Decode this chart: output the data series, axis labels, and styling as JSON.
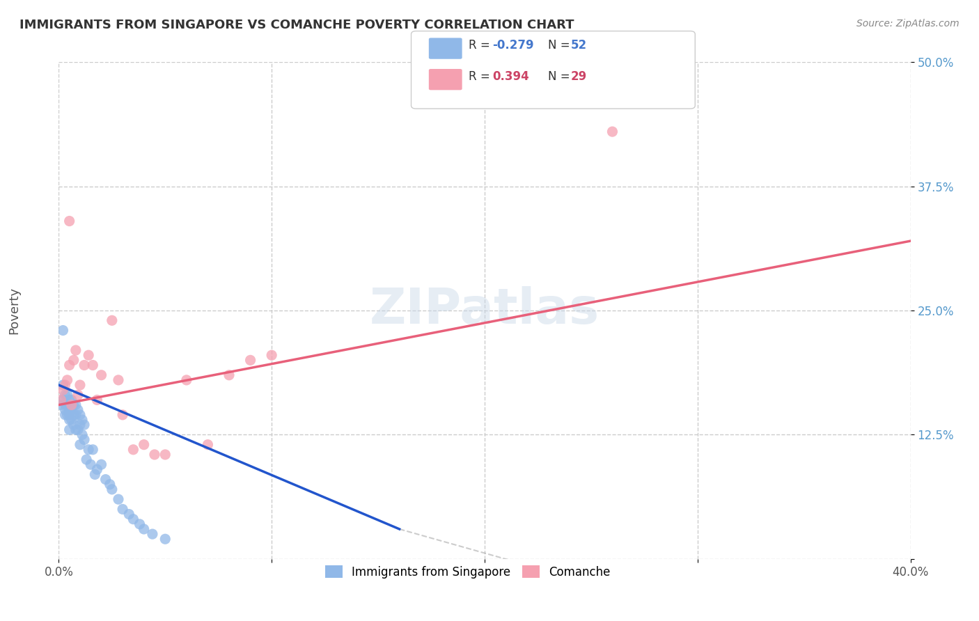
{
  "title": "IMMIGRANTS FROM SINGAPORE VS COMANCHE POVERTY CORRELATION CHART",
  "source": "Source: ZipAtlas.com",
  "xlabel": "",
  "ylabel": "Poverty",
  "xlim": [
    0.0,
    0.4
  ],
  "ylim": [
    0.0,
    0.5
  ],
  "xticks": [
    0.0,
    0.1,
    0.2,
    0.3,
    0.4
  ],
  "xtick_labels": [
    "0.0%",
    "",
    "",
    "",
    "40.0%"
  ],
  "yticks": [
    0.0,
    0.125,
    0.25,
    0.375,
    0.5
  ],
  "ytick_labels": [
    "",
    "12.5%",
    "25.0%",
    "37.5%",
    "50.0%"
  ],
  "legend_R1": "R = -0.279",
  "legend_N1": "N = 52",
  "legend_R2": "R =  0.394",
  "legend_N2": "N = 29",
  "blue_color": "#90b8e8",
  "pink_color": "#f5a0b0",
  "blue_line_color": "#2255cc",
  "pink_line_color": "#e8607a",
  "watermark": "ZIPatlas",
  "blue_scatter_x": [
    0.001,
    0.002,
    0.002,
    0.003,
    0.003,
    0.003,
    0.003,
    0.004,
    0.004,
    0.004,
    0.005,
    0.005,
    0.005,
    0.005,
    0.005,
    0.006,
    0.006,
    0.006,
    0.007,
    0.007,
    0.007,
    0.008,
    0.008,
    0.008,
    0.009,
    0.009,
    0.01,
    0.01,
    0.01,
    0.011,
    0.011,
    0.012,
    0.012,
    0.013,
    0.014,
    0.015,
    0.016,
    0.017,
    0.018,
    0.02,
    0.022,
    0.024,
    0.025,
    0.028,
    0.03,
    0.033,
    0.035,
    0.038,
    0.04,
    0.044,
    0.05,
    0.002
  ],
  "blue_scatter_y": [
    0.155,
    0.16,
    0.175,
    0.165,
    0.155,
    0.15,
    0.145,
    0.165,
    0.155,
    0.145,
    0.16,
    0.15,
    0.145,
    0.14,
    0.13,
    0.16,
    0.15,
    0.14,
    0.155,
    0.145,
    0.135,
    0.155,
    0.145,
    0.13,
    0.15,
    0.13,
    0.145,
    0.135,
    0.115,
    0.14,
    0.125,
    0.135,
    0.12,
    0.1,
    0.11,
    0.095,
    0.11,
    0.085,
    0.09,
    0.095,
    0.08,
    0.075,
    0.07,
    0.06,
    0.05,
    0.045,
    0.04,
    0.035,
    0.03,
    0.025,
    0.02,
    0.23
  ],
  "pink_scatter_x": [
    0.001,
    0.002,
    0.003,
    0.004,
    0.005,
    0.006,
    0.007,
    0.008,
    0.009,
    0.01,
    0.012,
    0.014,
    0.016,
    0.018,
    0.02,
    0.025,
    0.028,
    0.03,
    0.035,
    0.04,
    0.045,
    0.05,
    0.06,
    0.07,
    0.08,
    0.09,
    0.1,
    0.26,
    0.005
  ],
  "pink_scatter_y": [
    0.16,
    0.17,
    0.175,
    0.18,
    0.195,
    0.155,
    0.2,
    0.21,
    0.165,
    0.175,
    0.195,
    0.205,
    0.195,
    0.16,
    0.185,
    0.24,
    0.18,
    0.145,
    0.11,
    0.115,
    0.105,
    0.105,
    0.18,
    0.115,
    0.185,
    0.2,
    0.205,
    0.43,
    0.34
  ],
  "blue_line_x": [
    0.0,
    0.16
  ],
  "blue_line_y": [
    0.175,
    0.03
  ],
  "pink_line_x": [
    0.0,
    0.4
  ],
  "pink_line_y": [
    0.155,
    0.32
  ]
}
